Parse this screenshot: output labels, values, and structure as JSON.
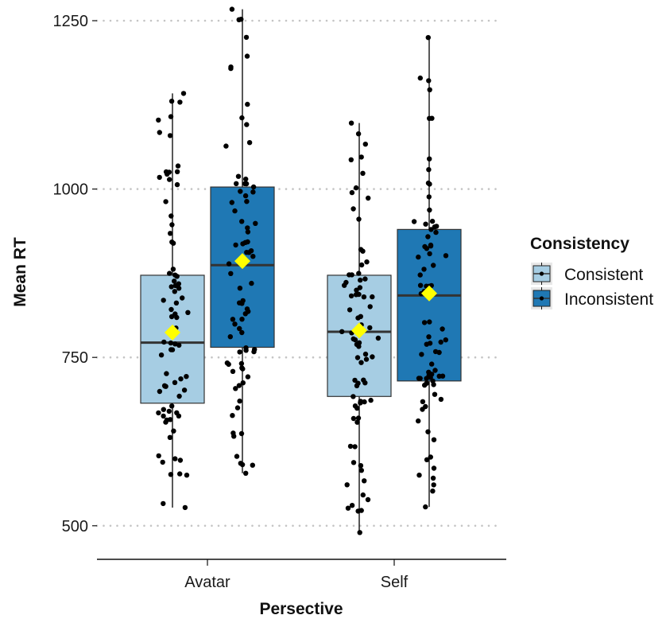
{
  "chart_data": {
    "type": "box",
    "xlabel": "Persective",
    "ylabel": "Mean RT",
    "ylim": [
      470,
      1270
    ],
    "y_ticks": [
      500,
      750,
      1000,
      1250
    ],
    "y_tick_labels": [
      "500",
      "750",
      "1000",
      "1250"
    ],
    "grid": "horizontal dotted at y ticks",
    "categories": [
      "Avatar",
      "Self"
    ],
    "legend": {
      "title": "Consistency",
      "placement": "right",
      "entries": [
        "Consistent",
        "Inconsistent"
      ]
    },
    "colors": {
      "Consistent": "#a6cde3",
      "Inconsistent": "#1f78b4",
      "mean_marker": "#ffff00",
      "points": "#000000"
    },
    "series": [
      {
        "name": "Consistent",
        "boxes": [
          {
            "category": "Avatar",
            "min": 527,
            "q1": 682,
            "median": 772,
            "q3": 872,
            "max": 1142,
            "mean": 787
          },
          {
            "category": "Self",
            "min": 490,
            "q1": 692,
            "median": 788,
            "q3": 872,
            "max": 1098,
            "mean": 790
          }
        ]
      },
      {
        "name": "Inconsistent",
        "boxes": [
          {
            "category": "Avatar",
            "min": 578,
            "q1": 765,
            "median": 887,
            "q3": 1003,
            "max": 1267,
            "mean": 893
          },
          {
            "category": "Self",
            "min": 528,
            "q1": 715,
            "median": 842,
            "q3": 940,
            "max": 1225,
            "mean": 845
          }
        ]
      }
    ]
  }
}
